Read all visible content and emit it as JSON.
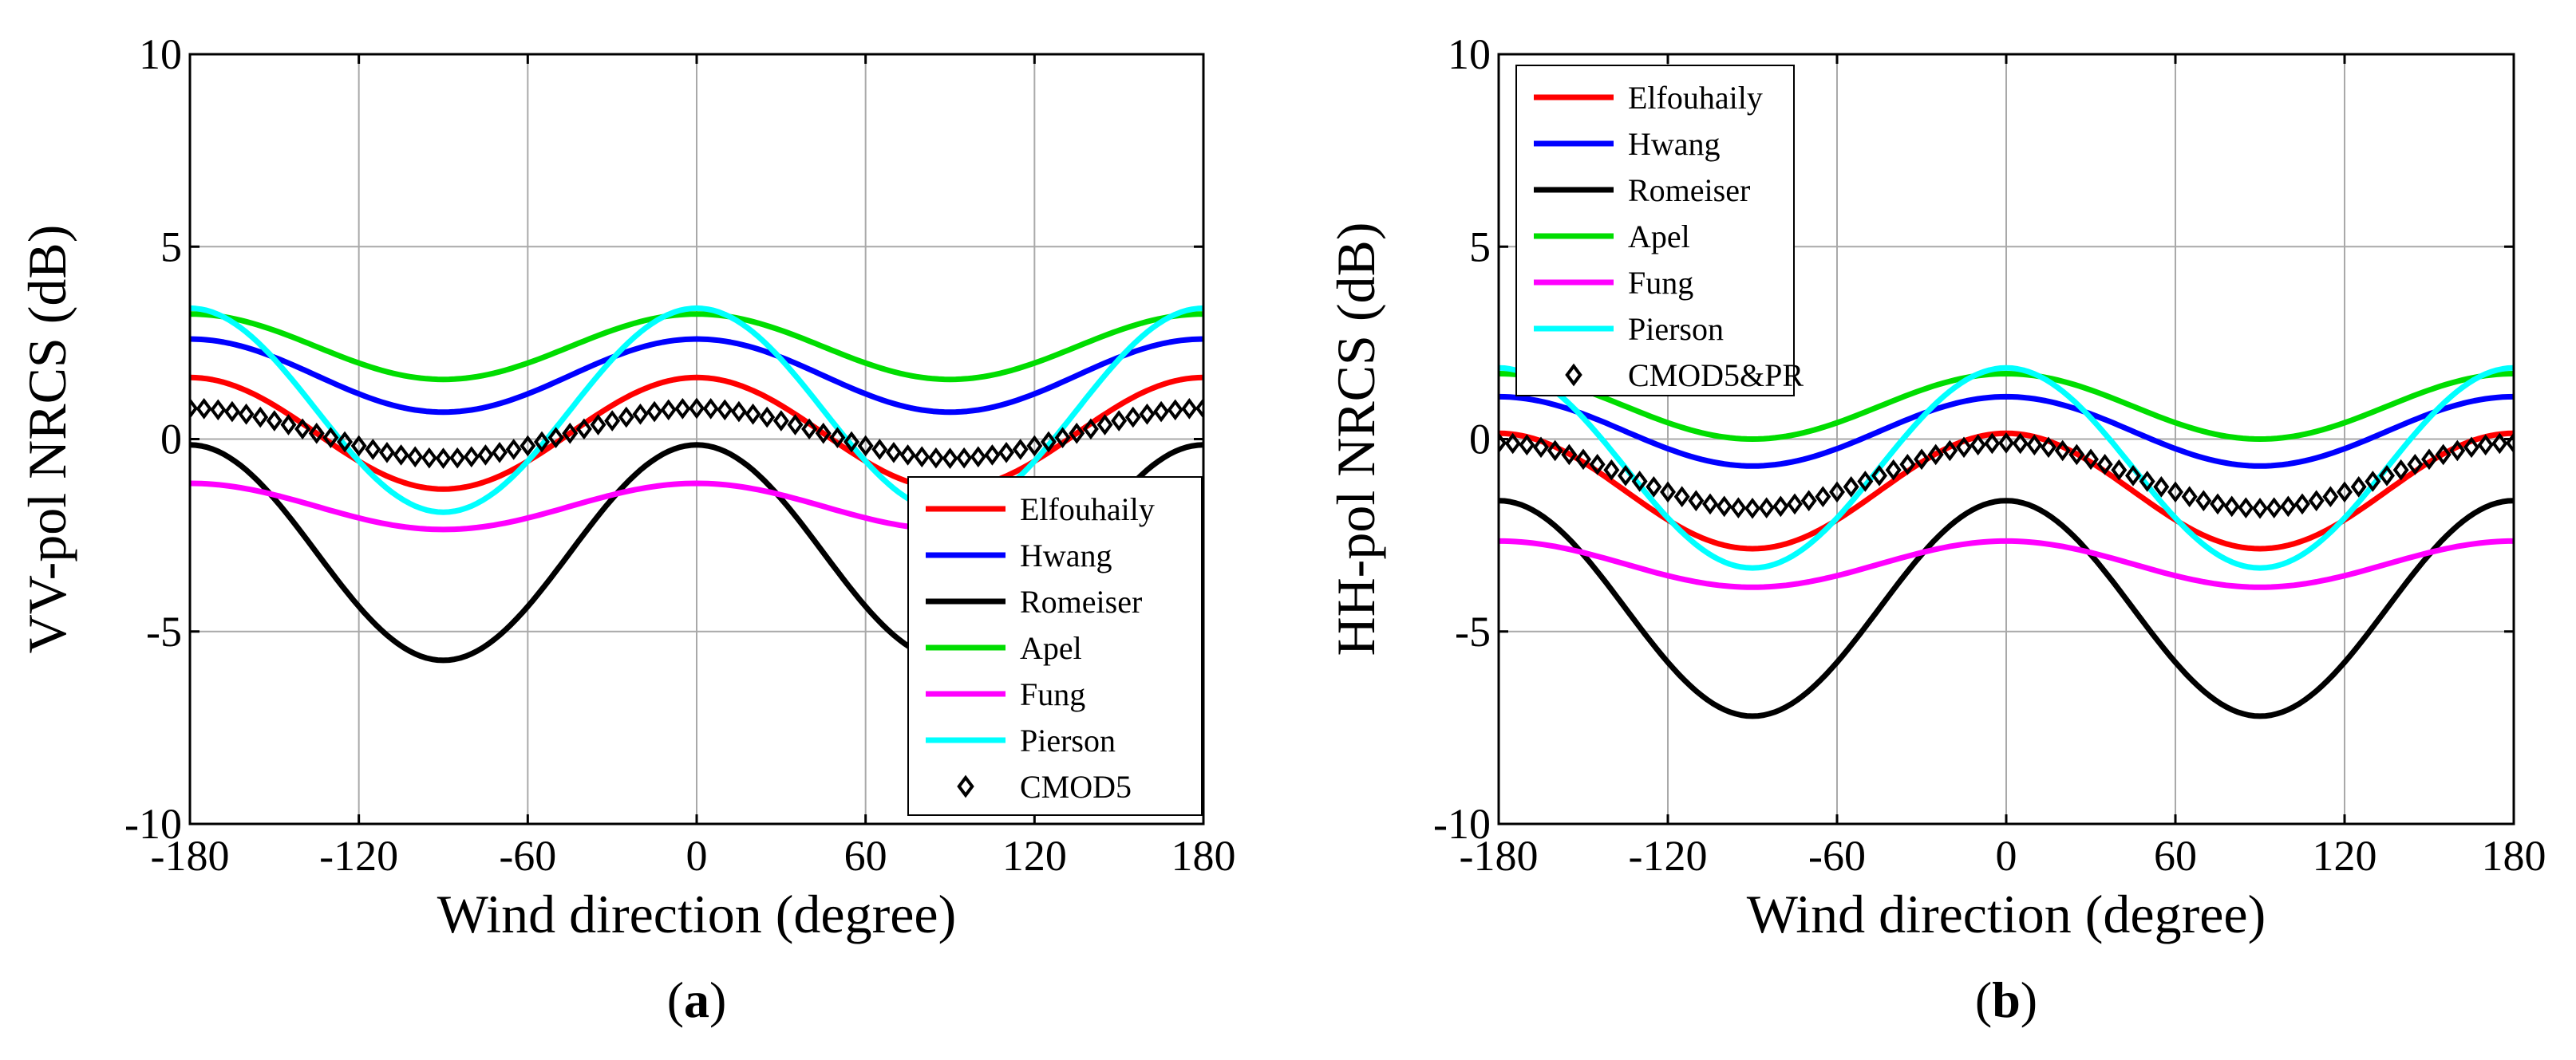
{
  "figure": {
    "panel_labels": [
      {
        "open": "(",
        "letter": "a",
        "close": ")"
      },
      {
        "open": "(",
        "letter": "b",
        "close": ")"
      }
    ]
  },
  "chart_data": [
    {
      "type": "line",
      "panel": "a",
      "title": "",
      "xlabel": "Wind direction (degree)",
      "ylabel": "VV-pol NRCS (dB)",
      "xlim": [
        -180,
        180
      ],
      "ylim": [
        -10,
        10
      ],
      "xticks": [
        -180,
        -120,
        -60,
        0,
        60,
        120,
        180
      ],
      "yticks": [
        -10,
        -5,
        0,
        5,
        10
      ],
      "xtick_labels": [
        "-180",
        "-120",
        "-60",
        "0",
        "60",
        "120",
        "180"
      ],
      "ytick_labels": [
        "-10",
        "-5",
        "0",
        "5",
        "10"
      ],
      "grid": true,
      "legend_position": "lower-right",
      "series": [
        {
          "name": "Elfouhaily",
          "color": "#ff0000",
          "style": "line",
          "model": {
            "A": 0.15,
            "B": 1.45
          }
        },
        {
          "name": "Hwang",
          "color": "#0000ff",
          "style": "line",
          "model": {
            "A": 1.65,
            "B": 0.95
          }
        },
        {
          "name": "Romeiser",
          "color": "#000000",
          "style": "line",
          "model": {
            "A": -2.95,
            "B": 2.8
          }
        },
        {
          "name": "Apel",
          "color": "#00dd00",
          "style": "line",
          "model": {
            "A": 2.4,
            "B": 0.85
          }
        },
        {
          "name": "Fung",
          "color": "#ff00ff",
          "style": "line",
          "model": {
            "A": -1.75,
            "B": 0.6
          }
        },
        {
          "name": "Pierson",
          "color": "#00ffff",
          "style": "line",
          "model": {
            "A": 0.75,
            "B": 2.65
          }
        },
        {
          "name": "CMOD5",
          "color": "#000000",
          "style": "marker",
          "marker": "diamond",
          "model": {
            "A": 0.15,
            "B": 0.65
          }
        }
      ]
    },
    {
      "type": "line",
      "panel": "b",
      "title": "",
      "xlabel": "Wind direction (degree)",
      "ylabel": "HH-pol NRCS (dB)",
      "xlim": [
        -180,
        180
      ],
      "ylim": [
        -10,
        10
      ],
      "xticks": [
        -180,
        -120,
        -60,
        0,
        60,
        120,
        180
      ],
      "yticks": [
        -10,
        -5,
        0,
        5,
        10
      ],
      "xtick_labels": [
        "-180",
        "-120",
        "-60",
        "0",
        "60",
        "120",
        "180"
      ],
      "ytick_labels": [
        "-10",
        "-5",
        "0",
        "5",
        "10"
      ],
      "grid": true,
      "legend_position": "top-left",
      "series": [
        {
          "name": "Elfouhaily",
          "color": "#ff0000",
          "style": "line",
          "model": {
            "A": -1.35,
            "B": 1.5
          }
        },
        {
          "name": "Hwang",
          "color": "#0000ff",
          "style": "line",
          "model": {
            "A": 0.2,
            "B": 0.9
          }
        },
        {
          "name": "Romeiser",
          "color": "#000000",
          "style": "line",
          "model": {
            "A": -4.4,
            "B": 2.8
          }
        },
        {
          "name": "Apel",
          "color": "#00dd00",
          "style": "line",
          "model": {
            "A": 0.85,
            "B": 0.85
          }
        },
        {
          "name": "Fung",
          "color": "#ff00ff",
          "style": "line",
          "model": {
            "A": -3.25,
            "B": 0.6
          }
        },
        {
          "name": "Pierson",
          "color": "#00ffff",
          "style": "line",
          "model": {
            "A": -0.75,
            "B": 2.6
          }
        },
        {
          "name": "CMOD5&PR",
          "color": "#000000",
          "style": "marker",
          "marker": "diamond",
          "model": {
            "A": -0.95,
            "B": 0.85
          }
        }
      ]
    }
  ]
}
